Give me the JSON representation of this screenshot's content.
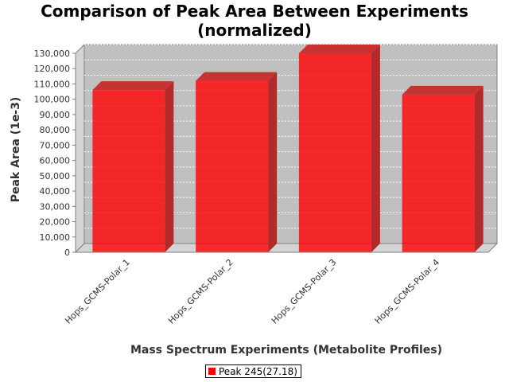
{
  "chart_data": {
    "type": "bar",
    "title": "Comparison of Peak Area Between Experiments (normalized)",
    "title_lines": [
      "Comparison of Peak Area Between Experiments",
      "(normalized)"
    ],
    "xlabel": "Mass Spectrum Experiments (Metabolite Profiles)",
    "ylabel": "Peak Area (1e-3)",
    "categories": [
      "Hops_GCMS-Polar_1",
      "Hops_GCMS-Polar_2",
      "Hops_GCMS-Polar_3",
      "Hops_GCMS-Polar_4"
    ],
    "series": [
      {
        "name": "Peak 245(27.18)",
        "values": [
          106000,
          112000,
          130000,
          103000
        ],
        "color": "#ff0000"
      }
    ],
    "ylim": [
      0,
      130000
    ],
    "yticks": [
      0,
      10000,
      20000,
      30000,
      40000,
      50000,
      60000,
      70000,
      80000,
      90000,
      100000,
      110000,
      120000,
      130000
    ],
    "ytick_labels": [
      "0",
      "10,000",
      "20,000",
      "30,000",
      "40,000",
      "50,000",
      "60,000",
      "70,000",
      "80,000",
      "90,000",
      "100,000",
      "110,000",
      "120,000",
      "130,000"
    ],
    "grid": true,
    "legend_position": "bottom-center",
    "style": "3d",
    "plot_background": "#c0c0c0"
  }
}
